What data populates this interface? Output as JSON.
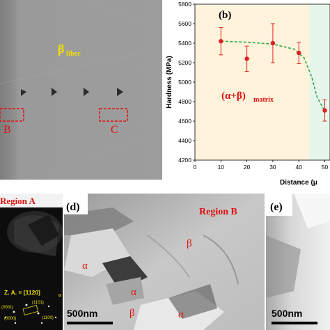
{
  "panel_a": {
    "label": "β",
    "label_sub": "fiber",
    "box_b": "B",
    "box_c": "C"
  },
  "panel_b": {
    "label": "(b)",
    "annotation": "(α+β)",
    "annotation_sub": "matrix"
  },
  "panel_c": {
    "region": "Region A",
    "zone_axis": "Z. A. = [1120]",
    "zone_axis_sub": "α",
    "spot_1": "(0001)",
    "spot_2": "(1101)",
    "spot_3": "(1100)",
    "spot_4": "(0000)"
  },
  "panel_d": {
    "label": "(d)",
    "region": "Region B",
    "phase_1": "α",
    "phase_2": "β",
    "phase_3": "α",
    "phase_4": "β",
    "phase_5": "α",
    "scale": "500nm"
  },
  "panel_e": {
    "label": "(e)",
    "scale": "500nm"
  },
  "chart_data": {
    "type": "scatter",
    "title": "",
    "xlabel": "Distance (μ",
    "ylabel": "Hardness (MPa)",
    "x": [
      10,
      20,
      30,
      40,
      50
    ],
    "y": [
      5420,
      5240,
      5400,
      5300,
      4710
    ],
    "y_err": [
      140,
      130,
      200,
      110,
      110
    ],
    "xlim": [
      0,
      52
    ],
    "ylim": [
      4200,
      5800
    ],
    "xticks": [
      "0",
      "10",
      "20",
      "30",
      "40",
      "50"
    ],
    "yticks": [
      "4200",
      "4400",
      "4600",
      "4800",
      "5000",
      "5200",
      "5400",
      "5600",
      "5800"
    ],
    "fit": "dashed green trend line",
    "point_color": "#e02020",
    "fit_color": "#2ea84a",
    "matrix_bg": "#fff3dc",
    "fiber_bg": "#e6f6ea"
  }
}
